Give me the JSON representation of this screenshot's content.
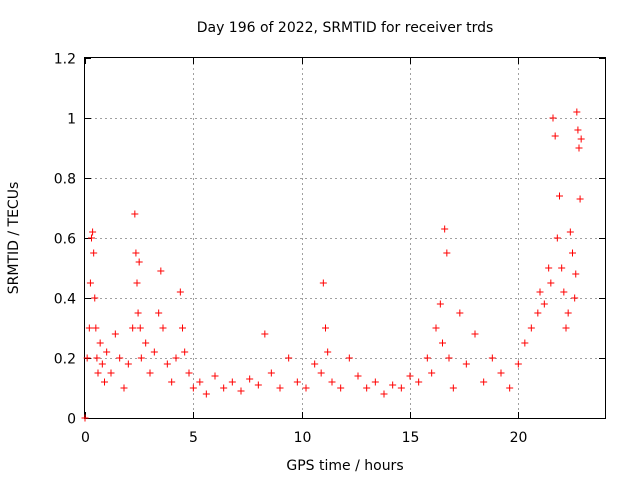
{
  "chart_data": {
    "type": "scatter",
    "title": "Day 196 of 2022, SRMTID for receiver trds",
    "xlabel": "GPS time / hours",
    "ylabel": "SRMTID / TECUs",
    "xlim": [
      0,
      24
    ],
    "ylim": [
      0,
      1.2
    ],
    "xticks": [
      0,
      5,
      10,
      15,
      20
    ],
    "yticks": [
      0,
      0.2,
      0.4,
      0.6,
      0.8,
      1,
      1.2
    ],
    "xtick_labels": [
      "0",
      "5",
      "10",
      "15",
      "20"
    ],
    "ytick_labels": [
      "0",
      "0.2",
      "0.4",
      "0.6",
      "0.8",
      "1",
      "1.2"
    ],
    "grid": true,
    "marker": "+",
    "marker_color": "#ff0000",
    "series": [
      {
        "name": "SRMTID",
        "x": [
          0.0,
          0.1,
          0.2,
          0.25,
          0.3,
          0.35,
          0.4,
          0.45,
          0.5,
          0.55,
          0.6,
          0.7,
          0.8,
          0.9,
          1.0,
          1.2,
          1.4,
          1.6,
          1.8,
          2.0,
          2.2,
          2.3,
          2.35,
          2.4,
          2.45,
          2.5,
          2.55,
          2.6,
          2.8,
          3.0,
          3.2,
          3.4,
          3.5,
          3.6,
          3.8,
          4.0,
          4.2,
          4.4,
          4.5,
          4.6,
          4.8,
          5.0,
          5.3,
          5.6,
          6.0,
          6.4,
          6.8,
          7.2,
          7.6,
          8.0,
          8.3,
          8.6,
          9.0,
          9.4,
          9.8,
          10.2,
          10.6,
          10.9,
          11.0,
          11.1,
          11.2,
          11.4,
          11.8,
          12.2,
          12.6,
          13.0,
          13.4,
          13.8,
          14.2,
          14.6,
          15.0,
          15.4,
          15.8,
          16.0,
          16.2,
          16.4,
          16.5,
          16.6,
          16.7,
          16.8,
          17.0,
          17.3,
          17.6,
          18.0,
          18.4,
          18.8,
          19.2,
          19.6,
          20.0,
          20.3,
          20.6,
          20.9,
          21.0,
          21.2,
          21.4,
          21.5,
          21.6,
          21.7,
          21.8,
          21.9,
          22.0,
          22.1,
          22.2,
          22.3,
          22.4,
          22.5,
          22.6,
          22.65,
          22.7,
          22.75,
          22.8,
          22.85,
          22.9
        ],
        "y": [
          0.0,
          0.2,
          0.3,
          0.45,
          0.6,
          0.62,
          0.55,
          0.4,
          0.3,
          0.2,
          0.15,
          0.25,
          0.18,
          0.12,
          0.22,
          0.15,
          0.28,
          0.2,
          0.1,
          0.18,
          0.3,
          0.68,
          0.55,
          0.45,
          0.35,
          0.52,
          0.3,
          0.2,
          0.25,
          0.15,
          0.22,
          0.35,
          0.49,
          0.3,
          0.18,
          0.12,
          0.2,
          0.42,
          0.3,
          0.22,
          0.15,
          0.1,
          0.12,
          0.08,
          0.14,
          0.1,
          0.12,
          0.09,
          0.13,
          0.11,
          0.28,
          0.15,
          0.1,
          0.2,
          0.12,
          0.1,
          0.18,
          0.15,
          0.45,
          0.3,
          0.22,
          0.12,
          0.1,
          0.2,
          0.14,
          0.1,
          0.12,
          0.08,
          0.11,
          0.1,
          0.14,
          0.12,
          0.2,
          0.15,
          0.3,
          0.38,
          0.25,
          0.63,
          0.55,
          0.2,
          0.1,
          0.35,
          0.18,
          0.28,
          0.12,
          0.2,
          0.15,
          0.1,
          0.18,
          0.25,
          0.3,
          0.35,
          0.42,
          0.38,
          0.5,
          0.45,
          1.0,
          0.94,
          0.6,
          0.74,
          0.5,
          0.42,
          0.3,
          0.35,
          0.62,
          0.55,
          0.4,
          0.48,
          1.02,
          0.96,
          0.9,
          0.73,
          0.93
        ]
      }
    ]
  }
}
